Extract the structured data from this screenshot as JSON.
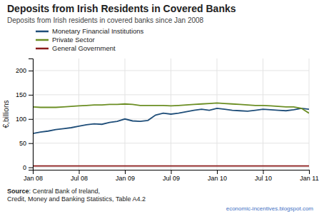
{
  "chart_data": {
    "type": "line",
    "title": "Deposits from Irish Residents in Covered Banks",
    "subtitle": "Deposits from Irish residents in covered banks since Jan 2008",
    "y_label": "€,billions",
    "annotations": [
      "Source",
      ": Central Bank of Ireland,",
      "Credit, Money and Banking Statistics, Table A4.2",
      "economic-incentives.blogspot.com"
    ],
    "categories": [
      "Jan 08",
      null,
      null,
      null,
      null,
      null,
      "Jul 08",
      null,
      null,
      null,
      null,
      null,
      "Jan 09",
      null,
      null,
      null,
      null,
      null,
      "Jul 09",
      null,
      null,
      null,
      null,
      null,
      "Jan 10",
      null,
      null,
      null,
      null,
      null,
      "Jul 10",
      null,
      null,
      null,
      null,
      null,
      "Jan 11"
    ],
    "series": [
      {
        "name": "Monetary Financial Institutions",
        "color": "#1f4e79",
        "values": [
          70,
          73,
          75,
          78,
          80,
          82,
          85,
          88,
          90,
          89,
          93,
          95,
          100,
          96,
          95,
          97,
          108,
          112,
          110,
          112,
          115,
          118,
          120,
          118,
          122,
          120,
          118,
          117,
          116,
          118,
          120,
          119,
          118,
          117,
          119,
          122,
          120
        ]
      },
      {
        "name": "Private Sector",
        "color": "#6b8e23",
        "values": [
          125,
          124,
          124,
          124,
          125,
          126,
          127,
          128,
          129,
          129,
          130,
          130,
          131,
          130,
          128,
          128,
          128,
          128,
          127,
          128,
          129,
          130,
          131,
          132,
          133,
          132,
          131,
          130,
          129,
          128,
          128,
          127,
          126,
          125,
          125,
          122,
          112
        ]
      },
      {
        "name": "General Government",
        "color": "#8b1a1a",
        "values": [
          3,
          3,
          3,
          3,
          3,
          3,
          3,
          3,
          3,
          3,
          3,
          3,
          3,
          3,
          3,
          3,
          3,
          3,
          3,
          3,
          3,
          3,
          3,
          3,
          3,
          3,
          3,
          3,
          3,
          3,
          3,
          3,
          3,
          3,
          3,
          3,
          3
        ]
      }
    ],
    "ylim": [
      -5,
      225
    ],
    "yticks": [
      0,
      50,
      100,
      150,
      200
    ],
    "grid": true,
    "legend": "upper left"
  }
}
